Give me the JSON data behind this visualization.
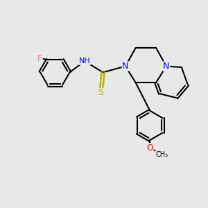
{
  "bg_color": "#e8e8e8",
  "bond_color": "#000000",
  "bond_width": 1.5,
  "atom_colors": {
    "N": "#0000ff",
    "S": "#b8b800",
    "F": "#ff69b4",
    "O": "#ff0000",
    "C": "#000000"
  },
  "font_size": 8,
  "fig_size": [
    3.0,
    3.0
  ],
  "dpi": 100
}
